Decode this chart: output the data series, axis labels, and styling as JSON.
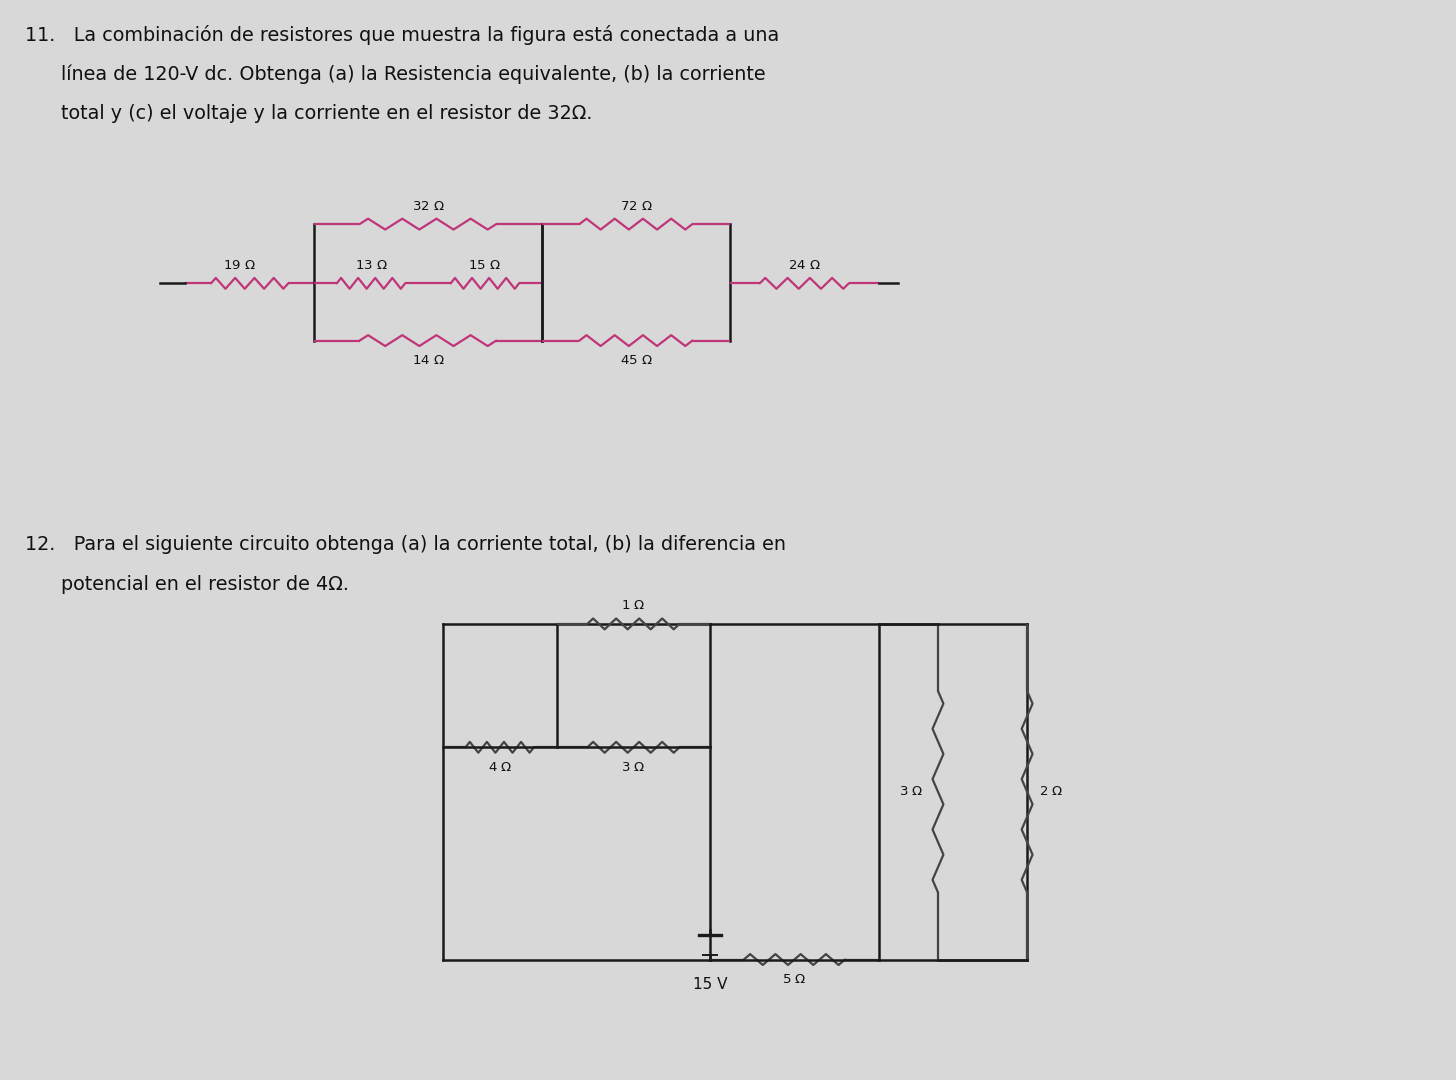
{
  "bg_color": "#d8d8d8",
  "wire_color": "#1a1a1a",
  "res_color_pink": "#c0357a",
  "res_color_dark": "#444444",
  "text_color": "#111111",
  "p11_line1": "11.   La combinación de resistores que muestra la figura está conectada a una",
  "p11_line2": "línea de 120-V dc. Obtenga (a) la Resistencia equivalente, (b) la corriente",
  "p11_line3": "total y (c) el voltaje y la corriente en el resistor de 32Ω.",
  "p12_line1": "12.   Para el siguiente circuito obtenga (a) la corriente total, (b) la diferencia en",
  "p12_line2": "potencial en el resistor de 4Ω."
}
